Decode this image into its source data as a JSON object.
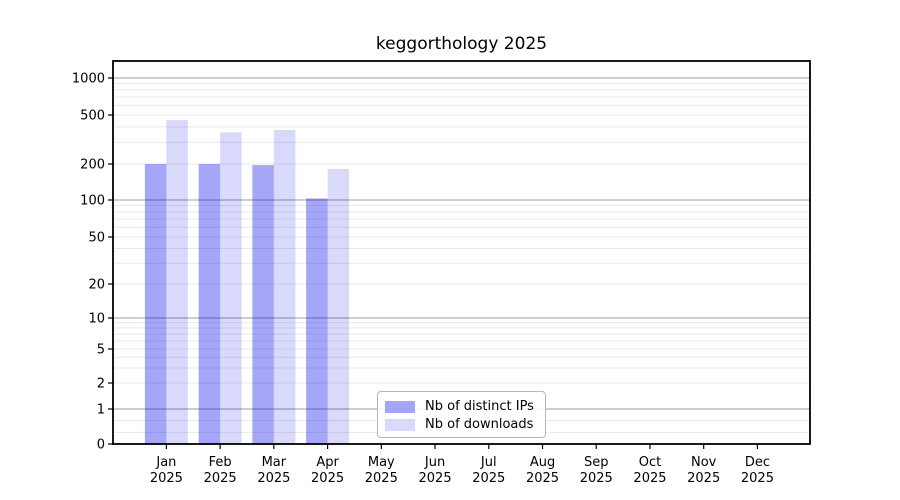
{
  "title": "keggorthology 2025",
  "chart_data": {
    "type": "bar",
    "title": "keggorthology 2025",
    "year_label": "2025",
    "categories": [
      "Jan",
      "Feb",
      "Mar",
      "Apr",
      "May",
      "Jun",
      "Jul",
      "Aug",
      "Sep",
      "Oct",
      "Nov",
      "Dec"
    ],
    "series": [
      {
        "name": "Nb of distinct IPs",
        "color": "rgba(0,0,238,0.35)",
        "values": [
          200,
          200,
          196,
          103,
          0,
          0,
          0,
          0,
          0,
          0,
          0,
          0
        ]
      },
      {
        "name": "Nb of downloads",
        "color": "rgba(0,0,238,0.15)",
        "values": [
          455,
          362,
          378,
          182,
          0,
          0,
          0,
          0,
          0,
          0,
          0,
          0
        ]
      }
    ],
    "yscale": "symlog",
    "yticks": [
      0,
      1,
      2,
      5,
      10,
      20,
      50,
      100,
      200,
      500,
      1000
    ],
    "ylim": [
      0,
      1400
    ],
    "grid": true,
    "legend_position": "lower-center"
  },
  "colors": {
    "background": "#ffffff",
    "axis": "#000000",
    "grid_major": "#b0b0b0",
    "grid_minor": "#e9e9e9",
    "text": "#000000",
    "legend_border": "#b7b7b7"
  }
}
